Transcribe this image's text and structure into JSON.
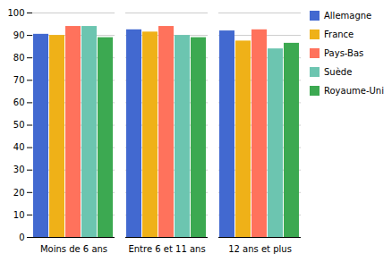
{
  "chart_data": {
    "type": "bar",
    "categories": [
      "Moins de 6 ans",
      "Entre 6 et 11 ans",
      "12 ans et plus"
    ],
    "series": [
      {
        "name": "Allemagne",
        "values": [
          90.5,
          92.5,
          92.0
        ]
      },
      {
        "name": "France",
        "values": [
          90.0,
          91.5,
          87.5
        ]
      },
      {
        "name": "Pays-Bas",
        "values": [
          94.0,
          94.0,
          92.5
        ]
      },
      {
        "name": "Suède",
        "values": [
          94.0,
          90.0,
          84.0
        ]
      },
      {
        "name": "Royaume-Uni",
        "values": [
          89.0,
          89.0,
          86.5
        ]
      }
    ],
    "ylim": [
      0,
      100
    ],
    "yticks": [
      0,
      10,
      20,
      30,
      40,
      50,
      60,
      70,
      80,
      90,
      100
    ],
    "grid": true,
    "legend": "right"
  }
}
